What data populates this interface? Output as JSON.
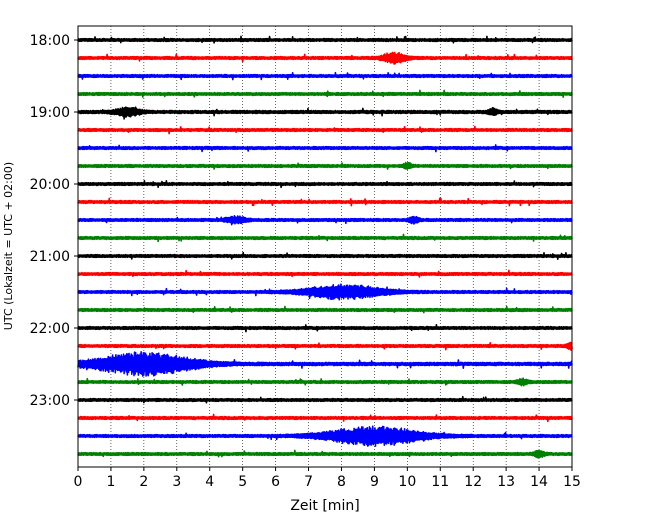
{
  "chart_data": {
    "type": "line",
    "title": "",
    "xlabel": "Zeit  [min]",
    "ylabel": "UTC (Lokalzeit = UTC + 02:00)",
    "xlim": [
      0,
      15
    ],
    "x_ticks": [
      0,
      1,
      2,
      3,
      4,
      5,
      6,
      7,
      8,
      9,
      10,
      11,
      12,
      13,
      14,
      15
    ],
    "x_tick_labels": [
      "0",
      "1",
      "2",
      "3",
      "4",
      "5",
      "6",
      "7",
      "8",
      "9",
      "10",
      "11",
      "12",
      "13",
      "14",
      "15"
    ],
    "x_grid": "dotted vertical lines at each minute",
    "y_tick_labels": [
      "18:00",
      "19:00",
      "20:00",
      "21:00",
      "22:00",
      "23:00"
    ],
    "y_ticks_trace_index": [
      0,
      4,
      8,
      12,
      16,
      20
    ],
    "trace_interval_minutes": 15,
    "color_cycle": [
      "#000000",
      "#ff0000",
      "#0000ff",
      "#008000"
    ],
    "traces": [
      {
        "start": "18:00",
        "color": "#000000",
        "noise": 1.4,
        "events": []
      },
      {
        "start": "18:15",
        "color": "#ff0000",
        "noise": 1.4,
        "events": [
          {
            "t": 9.6,
            "width": 0.9,
            "amp": 5
          }
        ]
      },
      {
        "start": "18:30",
        "color": "#0000ff",
        "noise": 1.4,
        "events": []
      },
      {
        "start": "18:45",
        "color": "#008000",
        "noise": 1.4,
        "events": []
      },
      {
        "start": "19:00",
        "color": "#000000",
        "noise": 1.5,
        "events": [
          {
            "t": 1.5,
            "width": 1.0,
            "amp": 4
          },
          {
            "t": 12.6,
            "width": 0.4,
            "amp": 3
          }
        ]
      },
      {
        "start": "19:15",
        "color": "#ff0000",
        "noise": 1.4,
        "events": []
      },
      {
        "start": "19:30",
        "color": "#0000ff",
        "noise": 1.4,
        "events": []
      },
      {
        "start": "19:45",
        "color": "#008000",
        "noise": 1.4,
        "events": [
          {
            "t": 10.0,
            "width": 0.3,
            "amp": 3
          }
        ]
      },
      {
        "start": "20:00",
        "color": "#000000",
        "noise": 1.4,
        "events": []
      },
      {
        "start": "20:15",
        "color": "#ff0000",
        "noise": 1.4,
        "events": []
      },
      {
        "start": "20:30",
        "color": "#0000ff",
        "noise": 1.4,
        "events": [
          {
            "t": 4.8,
            "width": 0.8,
            "amp": 3
          },
          {
            "t": 10.2,
            "width": 0.4,
            "amp": 3
          }
        ]
      },
      {
        "start": "20:45",
        "color": "#008000",
        "noise": 1.4,
        "events": []
      },
      {
        "start": "21:00",
        "color": "#000000",
        "noise": 1.4,
        "events": []
      },
      {
        "start": "21:15",
        "color": "#ff0000",
        "noise": 1.4,
        "events": []
      },
      {
        "start": "21:30",
        "color": "#0000ff",
        "noise": 1.4,
        "events": [
          {
            "t": 8.1,
            "width": 3.0,
            "amp": 7
          }
        ]
      },
      {
        "start": "21:45",
        "color": "#008000",
        "noise": 1.4,
        "events": []
      },
      {
        "start": "22:00",
        "color": "#000000",
        "noise": 1.4,
        "events": []
      },
      {
        "start": "22:15",
        "color": "#ff0000",
        "noise": 1.4,
        "events": [
          {
            "t": 15.0,
            "width": 0.4,
            "amp": 3
          }
        ]
      },
      {
        "start": "22:30",
        "color": "#0000ff",
        "noise": 1.6,
        "events": [
          {
            "t": 2.0,
            "width": 4.0,
            "amp": 11
          }
        ]
      },
      {
        "start": "22:45",
        "color": "#008000",
        "noise": 1.4,
        "events": [
          {
            "t": 13.5,
            "width": 0.4,
            "amp": 3
          }
        ]
      },
      {
        "start": "23:00",
        "color": "#000000",
        "noise": 1.4,
        "events": []
      },
      {
        "start": "23:15",
        "color": "#ff0000",
        "noise": 1.4,
        "events": []
      },
      {
        "start": "23:30",
        "color": "#0000ff",
        "noise": 1.4,
        "events": [
          {
            "t": 9.0,
            "width": 3.8,
            "amp": 9
          }
        ]
      },
      {
        "start": "23:45",
        "color": "#008000",
        "noise": 1.4,
        "events": [
          {
            "t": 14.0,
            "width": 0.4,
            "amp": 3
          }
        ]
      }
    ]
  }
}
